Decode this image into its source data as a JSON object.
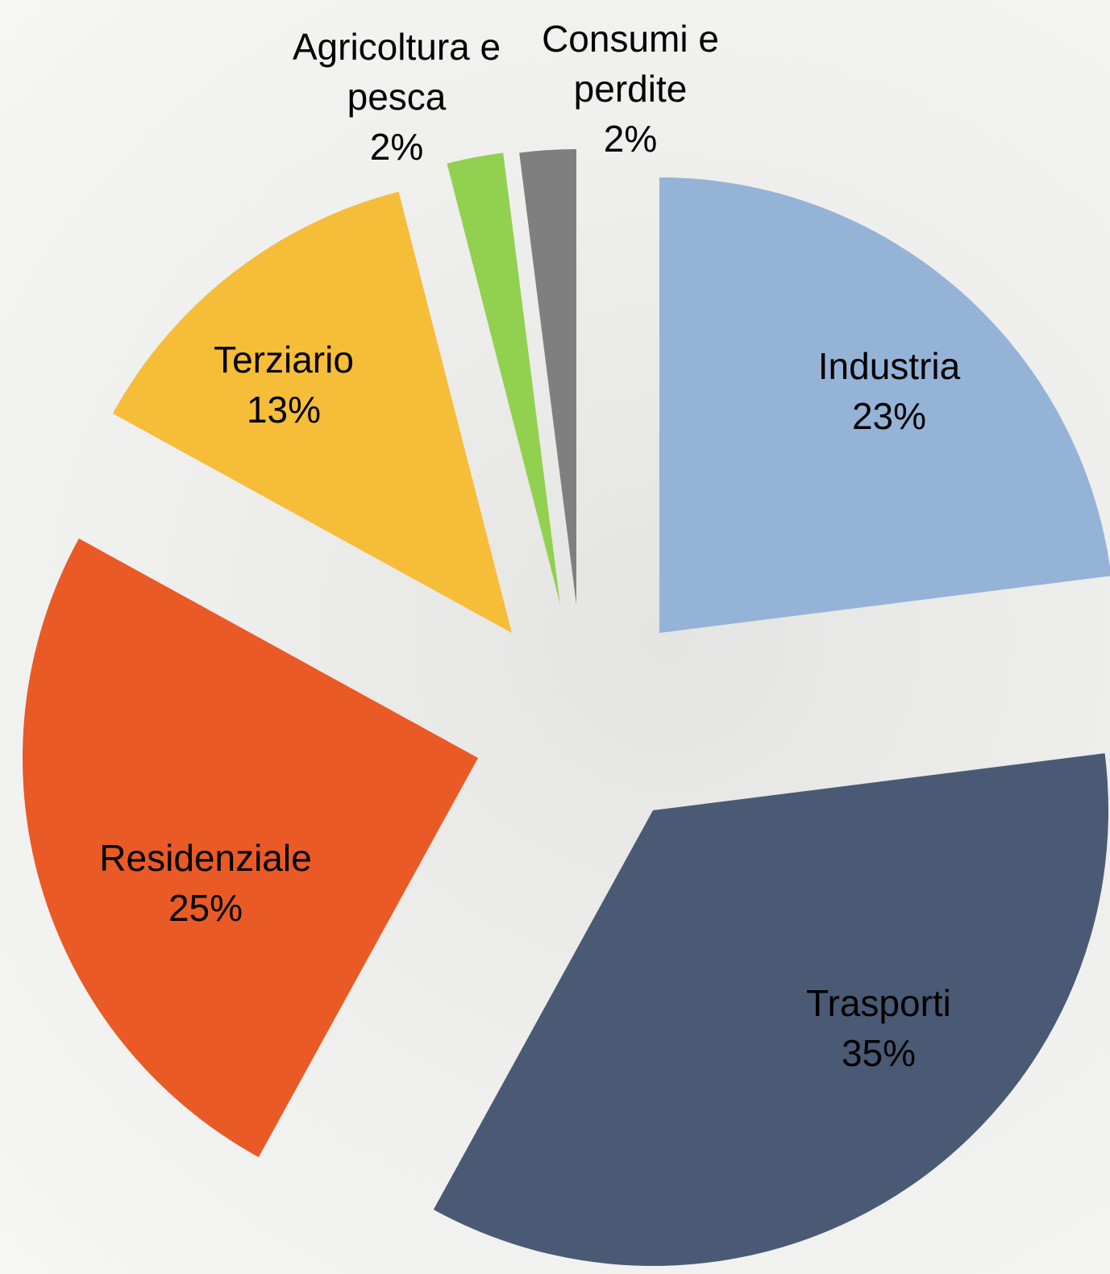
{
  "chart_data": {
    "type": "pie",
    "categories": [
      "Industria",
      "Trasporti",
      "Residenziale",
      "Terziario",
      "Agricoltura e pesca",
      "Consumi e perdite"
    ],
    "values": [
      23,
      35,
      25,
      13,
      2,
      2
    ],
    "value_labels": [
      "23%",
      "35%",
      "25%",
      "13%",
      "2%",
      "2%"
    ],
    "colors": [
      "#95b3d7",
      "#4a5a75",
      "#e95a26",
      "#f6bd39",
      "#92d050",
      "#7f7f7f"
    ]
  }
}
